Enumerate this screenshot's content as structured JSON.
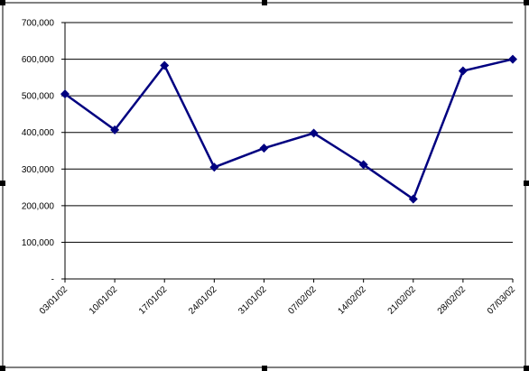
{
  "chart_data": {
    "type": "line",
    "categories": [
      "03/01/02",
      "10/01/02",
      "17/01/02",
      "24/01/02",
      "31/01/02",
      "07/02/02",
      "14/02/02",
      "21/02/02",
      "28/02/02",
      "07/03/02"
    ],
    "values": [
      505000,
      407000,
      583000,
      305000,
      357000,
      398000,
      312000,
      218000,
      568000,
      600000
    ],
    "color": "#000080",
    "ylim": [
      0,
      700000
    ],
    "yticks": [
      {
        "value": 0,
        "label": "-"
      },
      {
        "value": 100000,
        "label": "100,000"
      },
      {
        "value": 200000,
        "label": "200,000"
      },
      {
        "value": 300000,
        "label": "300,000"
      },
      {
        "value": 400000,
        "label": "400,000"
      },
      {
        "value": 500000,
        "label": "500,000"
      },
      {
        "value": 600000,
        "label": "600,000"
      },
      {
        "value": 700000,
        "label": "700,000"
      }
    ],
    "grid": true
  }
}
